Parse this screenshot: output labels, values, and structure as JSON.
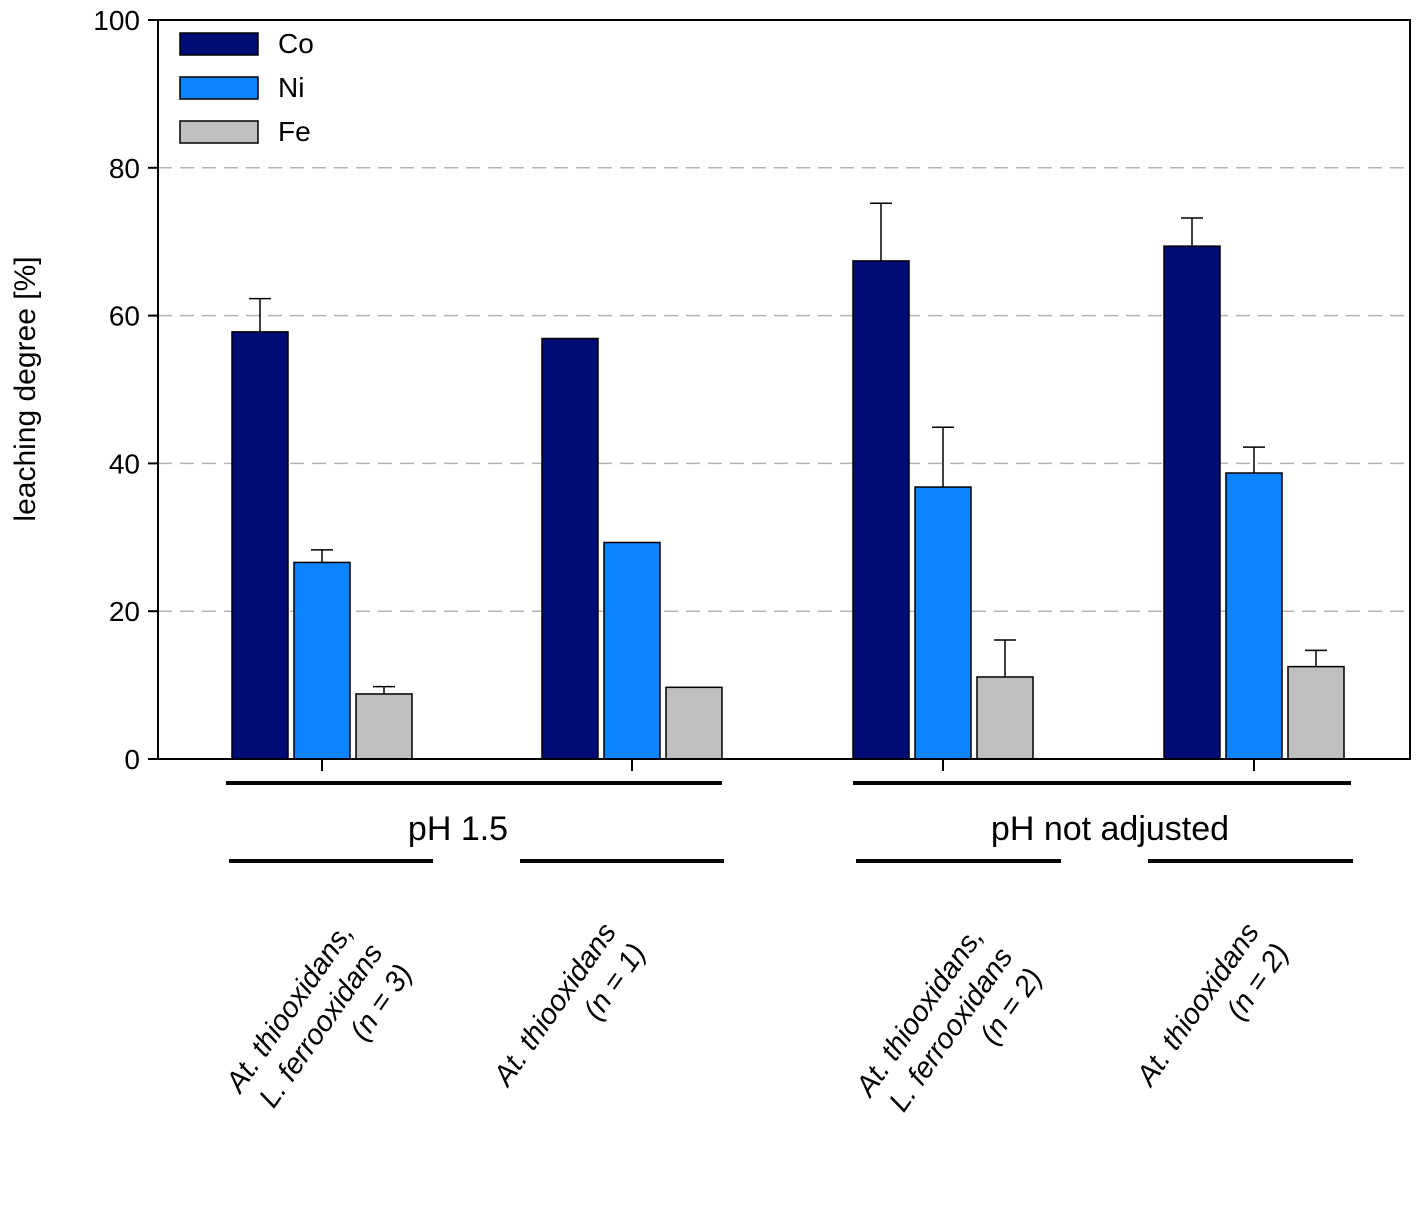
{
  "chart_data": {
    "type": "bar",
    "title": "",
    "xlabel": "",
    "ylabel": "leaching degree [%]",
    "ylim": [
      0,
      100
    ],
    "yticks": [
      0,
      20,
      40,
      60,
      80,
      100
    ],
    "grid": "horizontal dashed",
    "legend_position": "top-left",
    "categories": [
      {
        "lines": [
          "At. thiooxidans,",
          "L. ferrooxidans",
          "(n = 3)"
        ]
      },
      {
        "lines": [
          "At. thiooxidans",
          "(n = 1)"
        ]
      },
      {
        "lines": [
          "At. thiooxidans,",
          "L. ferrooxidans",
          "(n = 2)"
        ]
      },
      {
        "lines": [
          "At. thiooxidans",
          "(n = 2)"
        ]
      }
    ],
    "groups": [
      {
        "label": "pH 1.5",
        "categories": [
          0,
          1
        ]
      },
      {
        "label": "pH not adjusted",
        "categories": [
          2,
          3
        ]
      }
    ],
    "series": [
      {
        "name": "Co",
        "color": "#000C75",
        "values": [
          57.8,
          56.9,
          67.4,
          69.4
        ],
        "errors": [
          4.5,
          0,
          7.8,
          3.8
        ]
      },
      {
        "name": "Ni",
        "color": "#0A84FF",
        "values": [
          26.6,
          29.3,
          36.8,
          38.7
        ],
        "errors": [
          1.7,
          0,
          8.1,
          3.5
        ]
      },
      {
        "name": "Fe",
        "color": "#BFBFBF",
        "values": [
          8.8,
          9.7,
          11.1,
          12.5
        ],
        "errors": [
          1.0,
          0,
          5.0,
          2.2
        ]
      }
    ]
  }
}
